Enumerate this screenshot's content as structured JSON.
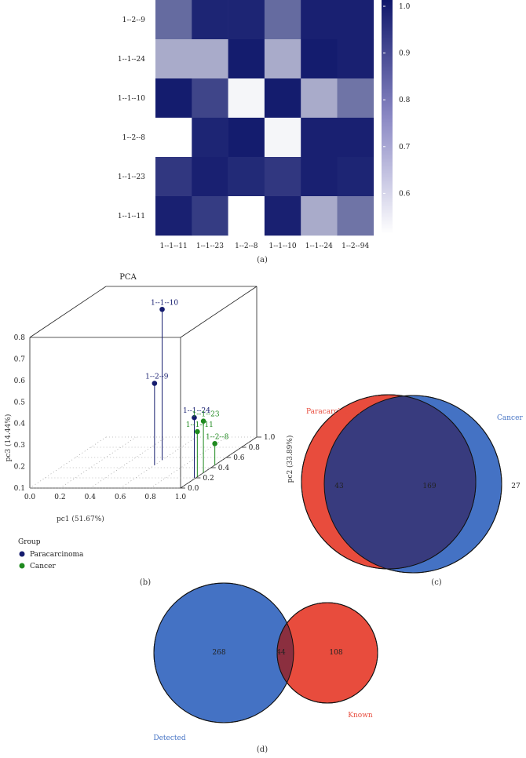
{
  "chart_data": [
    {
      "type": "heatmap",
      "panel_label": "(a)",
      "row_labels": [
        "1--2--9",
        "1--1--24",
        "1--1--10",
        "1--2--8",
        "1--1--23",
        "1--1--11"
      ],
      "col_labels": [
        "1--1--11",
        "1--1--23",
        "1--2--8",
        "1--1--10",
        "1--1--24",
        "1--2--94"
      ],
      "values": [
        [
          0.82,
          0.97,
          0.97,
          0.82,
          0.98,
          0.98
        ],
        [
          0.68,
          0.68,
          0.99,
          0.68,
          0.99,
          0.98
        ],
        [
          0.99,
          0.9,
          0.52,
          0.99,
          0.68,
          0.8
        ],
        [
          0.5,
          0.97,
          0.99,
          0.52,
          0.98,
          0.98
        ],
        [
          0.93,
          0.98,
          0.96,
          0.93,
          0.98,
          0.97
        ],
        [
          0.98,
          0.92,
          0.5,
          0.98,
          0.68,
          0.8
        ]
      ],
      "colorbar_ticks": [
        "1.0",
        "0.9",
        "0.8",
        "0.7",
        "0.6"
      ],
      "color_range": [
        0.5,
        1.0
      ],
      "color_high": "#0f176b",
      "color_low": "#ffffff"
    },
    {
      "type": "scatter",
      "panel_label": "(b)",
      "title": "PCA",
      "xlabel": "pc1 (51.67%)",
      "ylabel": "pc2 (33.89%)",
      "zlabel": "pc3 (14.44%)",
      "x_ticks": [
        "0.0",
        "0.2",
        "0.4",
        "0.6",
        "0.8",
        "1.0"
      ],
      "y_ticks": [
        "0.0",
        "0.2",
        "0.4",
        "0.6",
        "0.8",
        "1.0"
      ],
      "z_ticks": [
        "0.1",
        "0.2",
        "0.3",
        "0.4",
        "0.5",
        "0.6",
        "0.7",
        "0.8"
      ],
      "legend_title": "Group",
      "series": [
        {
          "name": "Paracarcinoma",
          "color": "#151c6e",
          "points": [
            {
              "label": "1--1--10",
              "x": 0.6,
              "y": 0.55,
              "z": 0.8
            },
            {
              "label": "1--2--9",
              "x": 0.6,
              "y": 0.45,
              "z": 0.48
            },
            {
              "label": "1--1--24",
              "x": 0.99,
              "y": 0.2,
              "z": 0.38
            }
          ]
        },
        {
          "name": "Cancer",
          "color": "#1f8a1f",
          "points": [
            {
              "label": "1--1--23",
              "x": 1.0,
              "y": 0.3,
              "z": 0.34
            },
            {
              "label": "1--1--11",
              "x": 1.0,
              "y": 0.22,
              "z": 0.31
            },
            {
              "label": "1--2--8",
              "x": 1.0,
              "y": 0.45,
              "z": 0.2
            }
          ]
        }
      ]
    },
    {
      "type": "venn",
      "panel_label": "(c)",
      "sets": [
        {
          "name": "Paracarcinoma",
          "only": 43,
          "color": "#e84c3d"
        },
        {
          "name": "Cancer",
          "only": 27,
          "color": "#4472c4"
        }
      ],
      "overlap": 169,
      "overlap_color": "#383b7e"
    },
    {
      "type": "venn",
      "panel_label": "(d)",
      "sets": [
        {
          "name": "Detected",
          "only": 268,
          "color": "#4472c4"
        },
        {
          "name": "Known",
          "only": 108,
          "color": "#e84c3d"
        }
      ],
      "overlap": 44,
      "overlap_color": "#8b2f3f"
    }
  ]
}
